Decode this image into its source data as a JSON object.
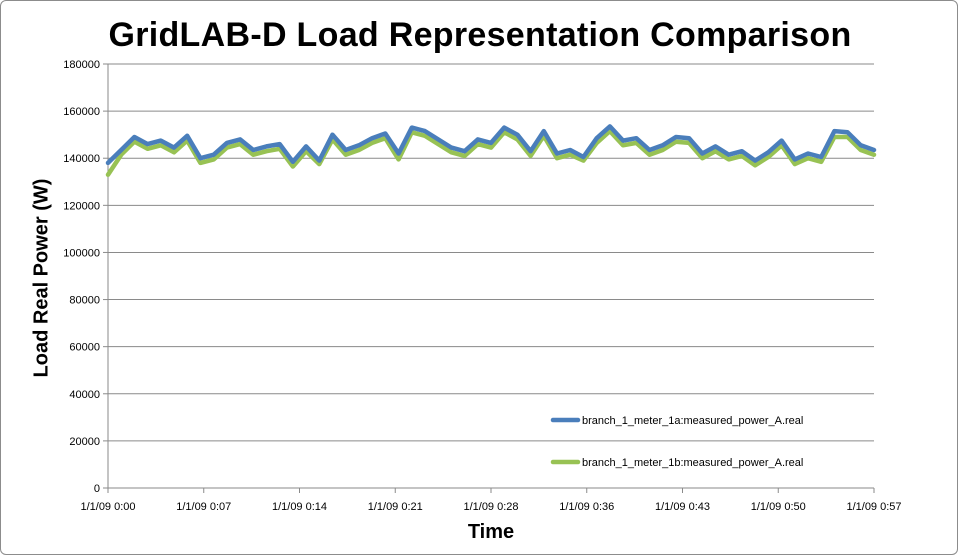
{
  "chart_data": {
    "type": "line",
    "title": "GridLAB-D Load Representation Comparison",
    "xlabel": "Time",
    "ylabel": "Load Real Power (W)",
    "ylim": [
      0,
      180000
    ],
    "yticks": [
      0,
      20000,
      40000,
      60000,
      80000,
      100000,
      120000,
      140000,
      160000,
      180000
    ],
    "xticks": [
      "1/1/09 0:00",
      "1/1/09 0:07",
      "1/1/09 0:14",
      "1/1/09 0:21",
      "1/1/09 0:28",
      "1/1/09 0:36",
      "1/1/09 0:43",
      "1/1/09 0:50",
      "1/1/09 0:57"
    ],
    "grid": "horizontal",
    "legend_position": "bottom-right",
    "series": [
      {
        "name": "branch_1_meter_1a:measured_power_A.real",
        "color": "#4a7ebb",
        "values": [
          138000,
          143500,
          149000,
          146000,
          147500,
          144500,
          149500,
          140000,
          141500,
          146500,
          148000,
          143500,
          145000,
          146000,
          138500,
          145000,
          139000,
          150000,
          143500,
          145500,
          148500,
          150500,
          142000,
          153000,
          151500,
          148000,
          144500,
          143000,
          148000,
          146500,
          153000,
          150000,
          143000,
          151500,
          142000,
          143500,
          140500,
          148500,
          153500,
          147500,
          148500,
          143500,
          145500,
          149000,
          148500,
          142000,
          145000,
          141500,
          143000,
          139000,
          142500,
          147500,
          139500,
          142000,
          140500,
          151500,
          151000,
          145500,
          143500
        ]
      },
      {
        "name": "branch_1_meter_1b:measured_power_A.real",
        "color": "#98c254",
        "values": [
          133000,
          141500,
          147000,
          144000,
          145500,
          142500,
          147500,
          138000,
          139500,
          144500,
          146000,
          141500,
          143000,
          144000,
          136500,
          143000,
          137500,
          148000,
          141500,
          143500,
          146500,
          148500,
          139500,
          151000,
          149500,
          146000,
          142500,
          141000,
          146000,
          144500,
          151000,
          148000,
          141000,
          149500,
          140000,
          141500,
          139000,
          146500,
          151500,
          145500,
          146500,
          141500,
          143500,
          147000,
          146500,
          140000,
          143000,
          139500,
          141000,
          137000,
          140500,
          145500,
          137500,
          140000,
          138500,
          149000,
          149000,
          143500,
          141500
        ]
      }
    ]
  }
}
